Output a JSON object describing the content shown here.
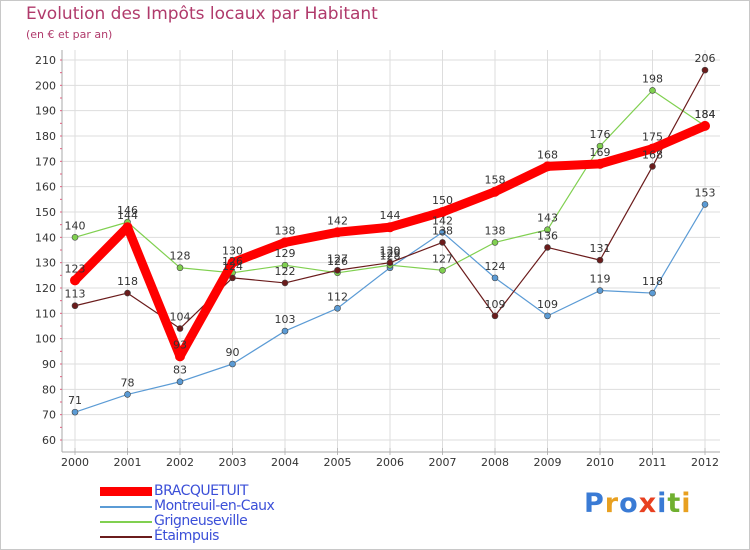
{
  "header": {
    "title": "Evolution des Impôts locaux par Habitant",
    "subtitle": "(en € et par an)"
  },
  "chart_data": {
    "type": "line",
    "title": "Evolution des Impôts locaux par Habitant",
    "subtitle": "(en € et par an)",
    "xlabel": "",
    "ylabel": "",
    "categories": [
      "2000",
      "2001",
      "2002",
      "2003",
      "2004",
      "2005",
      "2006",
      "2007",
      "2008",
      "2009",
      "2010",
      "2011",
      "2012"
    ],
    "ylim": [
      60,
      210
    ],
    "yticks": [
      60,
      70,
      80,
      90,
      100,
      110,
      120,
      130,
      140,
      150,
      160,
      170,
      180,
      190,
      200,
      210
    ],
    "grid": true,
    "legend_position": "bottom-left",
    "series": [
      {
        "name": "BRACQUETUIT",
        "color": "#ff0000",
        "values": [
          123,
          144,
          93,
          130,
          138,
          142,
          144,
          150,
          158,
          168,
          169,
          175,
          184
        ]
      },
      {
        "name": "Montreuil-en-Caux",
        "color": "#5b9bd5",
        "values": [
          71,
          78,
          83,
          90,
          103,
          112,
          128,
          142,
          124,
          109,
          119,
          118,
          153
        ]
      },
      {
        "name": "Grigneuseville",
        "color": "#80d050",
        "values": [
          140,
          146,
          128,
          126,
          129,
          126,
          129,
          127,
          138,
          143,
          176,
          198,
          184
        ]
      },
      {
        "name": "Étaimpuis",
        "color": "#6b1c1c",
        "values": [
          113,
          118,
          104,
          124,
          122,
          127,
          130,
          138,
          109,
          136,
          131,
          168,
          206
        ]
      }
    ]
  },
  "logo": {
    "letters": [
      "P",
      "r",
      "o",
      "x",
      "i",
      "t",
      "i"
    ],
    "colors": [
      "#3a7bd5",
      "#e8a020",
      "#3a7bd5",
      "#e84020",
      "#3a7bd5",
      "#70b030",
      "#e8a020"
    ]
  }
}
